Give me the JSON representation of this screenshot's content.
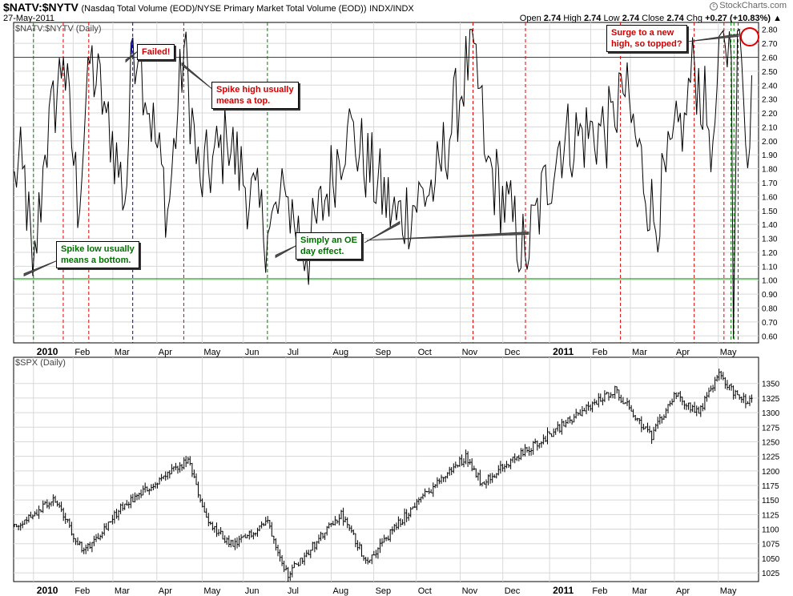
{
  "header": {
    "symbol": "$NATV:$NYTV",
    "description": "(Nasdaq Total Volume (EOD)/NYSE Primary Market Total Volume (EOD))",
    "exchange": "INDX/INDX",
    "date": "27-May-2011",
    "credit": "StockCharts.com",
    "ohlc": {
      "open_label": "Open",
      "open": "2.74",
      "high_label": "High",
      "high": "2.74",
      "low_label": "Low",
      "low": "2.74",
      "close_label": "Close",
      "close": "2.74",
      "chg_label": "Chg",
      "chg": "+0.27 (+10.83%)"
    }
  },
  "colors": {
    "red_line": "#e00000",
    "green_line": "#008000",
    "blue_line": "#0000c0",
    "series": "#000000",
    "grid": "#d8d8d8",
    "callout_red": "#d00000",
    "callout_green": "#007000"
  },
  "annotations": [
    {
      "id": "failed",
      "text": "Failed!",
      "color": "red"
    },
    {
      "id": "spike-high",
      "text": "Spike high usually\nmeans a top.",
      "color": "red"
    },
    {
      "id": "spike-low",
      "text": "Spike low usually\nmeans a bottom.",
      "color": "green"
    },
    {
      "id": "oe-day",
      "text": "Simply an OE\nday effect.",
      "color": "green"
    },
    {
      "id": "surge",
      "text": "Surge to a new\nhigh, so topped?",
      "color": "red"
    }
  ],
  "chart_data": [
    {
      "type": "line",
      "panel_label": "$NATV:$NYTV (Daily)",
      "ylim": [
        0.55,
        2.85
      ],
      "y_ticks": [
        "0.60",
        "0.70",
        "0.80",
        "0.90",
        "1.00",
        "1.10",
        "1.20",
        "1.30",
        "1.40",
        "1.50",
        "1.60",
        "1.70",
        "1.80",
        "1.90",
        "2.00",
        "2.10",
        "2.20",
        "2.30",
        "2.40",
        "2.50",
        "2.60",
        "2.70",
        "2.80"
      ],
      "x_ticks": [
        "2010",
        "Feb",
        "Mar",
        "Apr",
        "May",
        "Jun",
        "Jul",
        "Aug",
        "Sep",
        "Oct",
        "Nov",
        "Dec",
        "2011",
        "Feb",
        "Mar",
        "Apr",
        "May"
      ],
      "horizontal_lines": [
        {
          "value": 2.6,
          "color": "red"
        },
        {
          "value": 1.01,
          "color": "green"
        }
      ],
      "key_points": [
        {
          "date": "2009-12-21",
          "value": 1.78
        },
        {
          "date": "2009-12-28",
          "value": 1.8
        },
        {
          "date": "2010-01-04",
          "value": 1.03
        },
        {
          "date": "2010-01-12",
          "value": 1.9
        },
        {
          "date": "2010-01-25",
          "value": 2.6
        },
        {
          "date": "2010-02-05",
          "value": 1.5
        },
        {
          "date": "2010-02-12",
          "value": 2.6
        },
        {
          "date": "2010-02-25",
          "value": 2.2
        },
        {
          "date": "2010-03-10",
          "value": 1.55
        },
        {
          "date": "2010-03-15",
          "value": 2.74
        },
        {
          "date": "2010-03-20",
          "value": 2.62
        },
        {
          "date": "2010-04-09",
          "value": 1.5
        },
        {
          "date": "2010-04-20",
          "value": 2.67
        },
        {
          "date": "2010-05-01",
          "value": 1.7
        },
        {
          "date": "2010-05-21",
          "value": 2.0
        },
        {
          "date": "2010-06-18",
          "value": 1.33
        },
        {
          "date": "2010-07-01",
          "value": 1.6
        },
        {
          "date": "2010-07-16",
          "value": 1.17
        },
        {
          "date": "2010-08-13",
          "value": 2.1
        },
        {
          "date": "2010-09-17",
          "value": 1.43
        },
        {
          "date": "2010-10-15",
          "value": 1.7
        },
        {
          "date": "2010-11-10",
          "value": 2.7
        },
        {
          "date": "2010-11-20",
          "value": 1.85
        },
        {
          "date": "2010-12-17",
          "value": 1.18
        },
        {
          "date": "2011-01-10",
          "value": 2.0
        },
        {
          "date": "2011-02-18",
          "value": 2.1
        },
        {
          "date": "2011-02-22",
          "value": 2.48
        },
        {
          "date": "2011-03-18",
          "value": 1.42
        },
        {
          "date": "2011-04-08",
          "value": 2.2
        },
        {
          "date": "2011-04-15",
          "value": 2.55
        },
        {
          "date": "2011-04-28",
          "value": 2.0
        },
        {
          "date": "2011-05-06",
          "value": 2.79
        },
        {
          "date": "2011-05-11",
          "value": 2.6
        },
        {
          "date": "2011-05-13",
          "value": 0.57
        },
        {
          "date": "2011-05-16",
          "value": 2.79
        },
        {
          "date": "2011-05-20",
          "value": 2.3
        },
        {
          "date": "2011-05-24",
          "value": 1.95
        },
        {
          "date": "2011-05-26",
          "value": 2.47
        },
        {
          "date": "2011-05-27",
          "value": 2.74
        }
      ]
    },
    {
      "type": "ohlc",
      "panel_label": "$SPX (Daily)",
      "ylim": [
        1010,
        1395
      ],
      "y_ticks": [
        "1025",
        "1050",
        "1075",
        "1100",
        "1125",
        "1150",
        "1175",
        "1200",
        "1225",
        "1250",
        "1275",
        "1300",
        "1325",
        "1350"
      ],
      "x_ticks": [
        "2010",
        "Feb",
        "Mar",
        "Apr",
        "May",
        "Jun",
        "Jul",
        "Aug",
        "Sep",
        "Oct",
        "Nov",
        "Dec",
        "2011",
        "Feb",
        "Mar",
        "Apr",
        "May"
      ],
      "key_points": [
        {
          "date": "2009-12-21",
          "close": 1105
        },
        {
          "date": "2010-01-19",
          "close": 1150
        },
        {
          "date": "2010-02-08",
          "close": 1060
        },
        {
          "date": "2010-03-08",
          "close": 1140
        },
        {
          "date": "2010-04-23",
          "close": 1217
        },
        {
          "date": "2010-05-07",
          "close": 1110
        },
        {
          "date": "2010-05-25",
          "close": 1070
        },
        {
          "date": "2010-06-18",
          "close": 1115
        },
        {
          "date": "2010-07-02",
          "close": 1022
        },
        {
          "date": "2010-08-09",
          "close": 1125
        },
        {
          "date": "2010-08-27",
          "close": 1045
        },
        {
          "date": "2010-10-01",
          "close": 1145
        },
        {
          "date": "2010-11-05",
          "close": 1225
        },
        {
          "date": "2010-11-16",
          "close": 1180
        },
        {
          "date": "2010-12-31",
          "close": 1258
        },
        {
          "date": "2011-02-18",
          "close": 1340
        },
        {
          "date": "2011-03-16",
          "close": 1258
        },
        {
          "date": "2011-04-01",
          "close": 1332
        },
        {
          "date": "2011-04-18",
          "close": 1300
        },
        {
          "date": "2011-05-02",
          "close": 1365
        },
        {
          "date": "2011-05-13",
          "close": 1335
        },
        {
          "date": "2011-05-23",
          "close": 1318
        },
        {
          "date": "2011-05-27",
          "close": 1331
        }
      ]
    }
  ],
  "vertical_markers": [
    {
      "date": "2010-01-04",
      "color": "green"
    },
    {
      "date": "2010-01-25",
      "color": "red"
    },
    {
      "date": "2010-02-12",
      "color": "red"
    },
    {
      "date": "2010-03-15",
      "color": "blue"
    },
    {
      "date": "2010-04-20",
      "color": "red"
    },
    {
      "date": "2010-06-18",
      "color": "green"
    },
    {
      "date": "2010-11-10",
      "color": "red"
    },
    {
      "date": "2010-12-17",
      "color": "red"
    },
    {
      "date": "2011-02-22",
      "color": "red"
    },
    {
      "date": "2011-04-15",
      "color": "red"
    },
    {
      "date": "2011-05-06",
      "color": "red"
    },
    {
      "date": "2011-05-11",
      "color": "green"
    },
    {
      "date": "2011-05-13",
      "color": "green"
    },
    {
      "date": "2011-05-16",
      "color": "red"
    }
  ]
}
